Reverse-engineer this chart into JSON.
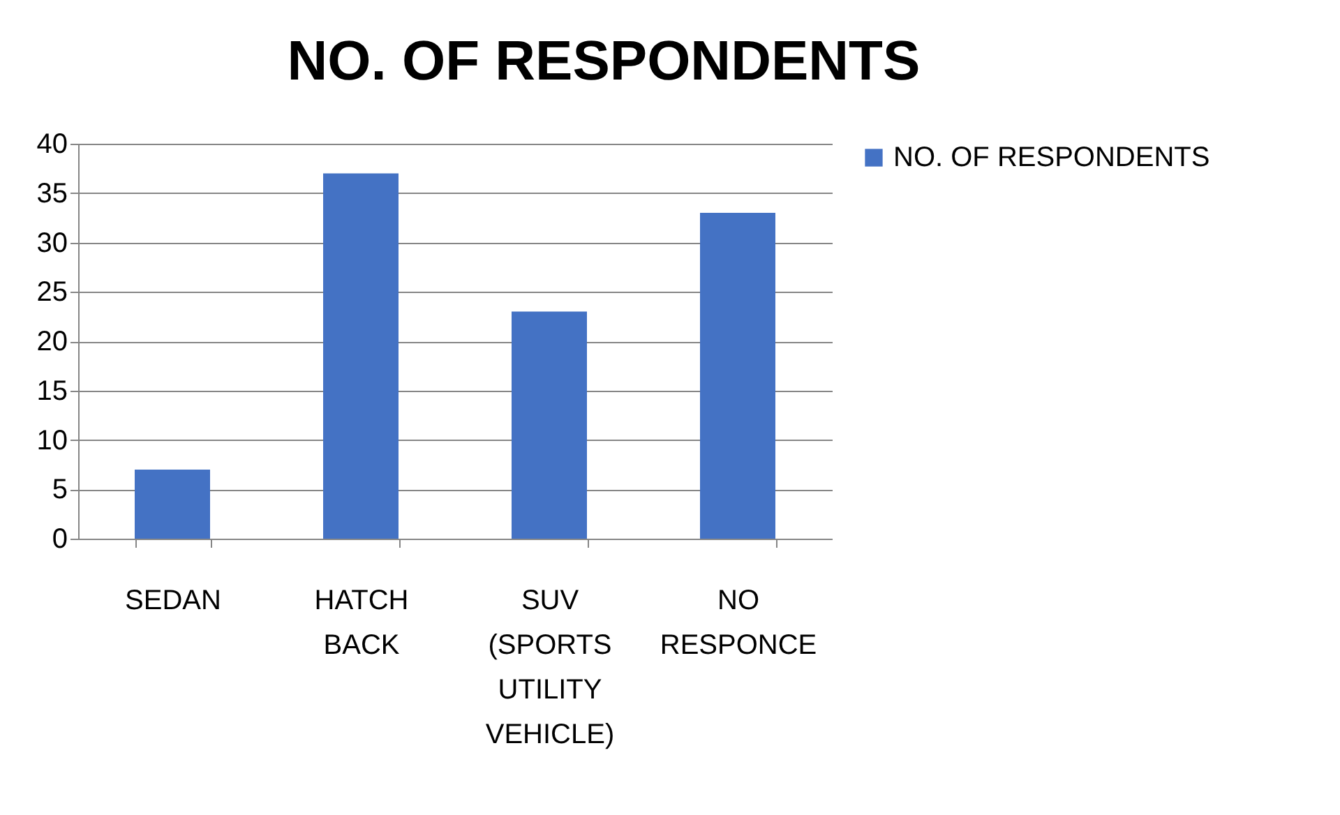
{
  "chart_data": {
    "type": "bar",
    "title": "NO. OF RESPONDENTS",
    "categories": [
      "SEDAN",
      "HATCH BACK",
      "SUV (SPORTS UTILITY VEHICLE)",
      "NO RESPONCE"
    ],
    "series": [
      {
        "name": "NO. OF RESPONDENTS",
        "color": "#4472c4",
        "values": [
          7,
          37,
          23,
          33
        ]
      }
    ],
    "ylim": [
      0,
      40
    ],
    "yticks": [
      0,
      5,
      10,
      15,
      20,
      25,
      30,
      35,
      40
    ],
    "grid": "y",
    "legend": "right"
  }
}
